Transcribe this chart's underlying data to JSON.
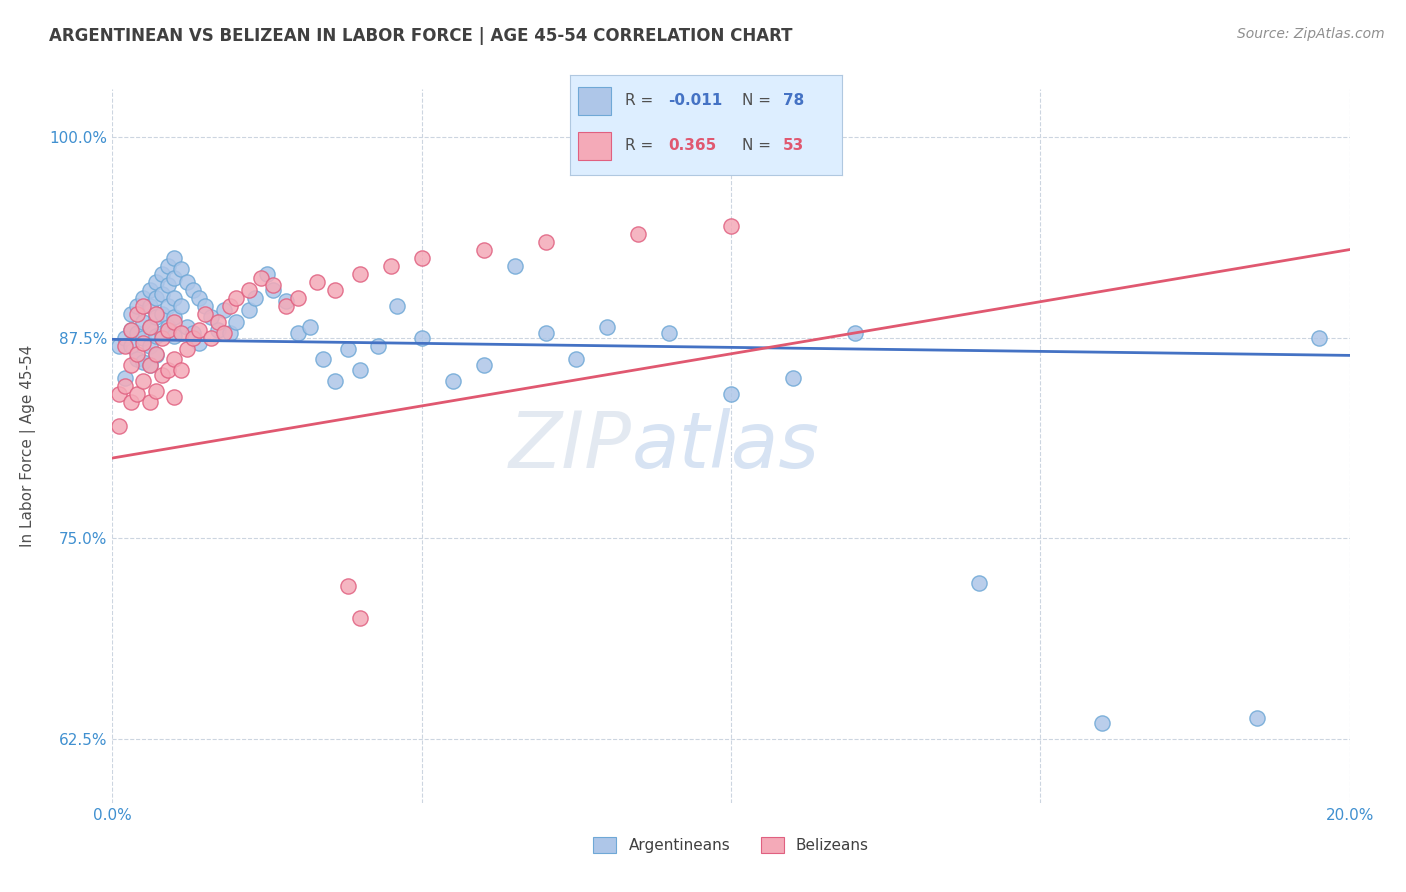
{
  "title": "ARGENTINEAN VS BELIZEAN IN LABOR FORCE | AGE 45-54 CORRELATION CHART",
  "source": "Source: ZipAtlas.com",
  "ylabel_label": "In Labor Force | Age 45-54",
  "xlim": [
    0.0,
    0.2
  ],
  "ylim": [
    0.585,
    1.03
  ],
  "yticks": [
    0.625,
    0.75,
    0.875,
    1.0
  ],
  "argentinean_color": "#aec6e8",
  "argentinean_edge": "#6fa8d6",
  "belizean_color": "#f4aab8",
  "belizean_edge": "#e06080",
  "trend_blue": "#4472c4",
  "trend_pink": "#e05870",
  "background_color": "#ffffff",
  "grid_color": "#ccd5e0",
  "title_color": "#404040",
  "axis_label_color": "#505050",
  "tick_color": "#4090d0",
  "legend_box_color": "#ddeeff",
  "legend_box_edge": "#b0c8e0",
  "watermark_color": "#c5d5ea",
  "argentinean_x": [
    0.001,
    0.002,
    0.002,
    0.003,
    0.003,
    0.003,
    0.004,
    0.004,
    0.004,
    0.005,
    0.005,
    0.005,
    0.005,
    0.006,
    0.006,
    0.006,
    0.006,
    0.006,
    0.007,
    0.007,
    0.007,
    0.007,
    0.007,
    0.008,
    0.008,
    0.008,
    0.008,
    0.009,
    0.009,
    0.009,
    0.009,
    0.01,
    0.01,
    0.01,
    0.01,
    0.01,
    0.011,
    0.011,
    0.012,
    0.012,
    0.013,
    0.013,
    0.014,
    0.014,
    0.015,
    0.016,
    0.017,
    0.018,
    0.019,
    0.02,
    0.022,
    0.023,
    0.025,
    0.026,
    0.028,
    0.03,
    0.032,
    0.034,
    0.036,
    0.038,
    0.04,
    0.043,
    0.046,
    0.05,
    0.055,
    0.06,
    0.065,
    0.07,
    0.075,
    0.08,
    0.09,
    0.1,
    0.11,
    0.12,
    0.14,
    0.16,
    0.185,
    0.195
  ],
  "argentinean_y": [
    0.87,
    0.875,
    0.85,
    0.89,
    0.88,
    0.87,
    0.895,
    0.878,
    0.862,
    0.9,
    0.885,
    0.875,
    0.86,
    0.905,
    0.895,
    0.882,
    0.87,
    0.858,
    0.91,
    0.9,
    0.888,
    0.876,
    0.864,
    0.915,
    0.902,
    0.89,
    0.878,
    0.92,
    0.908,
    0.895,
    0.882,
    0.925,
    0.912,
    0.9,
    0.888,
    0.876,
    0.918,
    0.895,
    0.91,
    0.882,
    0.905,
    0.878,
    0.9,
    0.872,
    0.895,
    0.888,
    0.88,
    0.892,
    0.878,
    0.885,
    0.892,
    0.9,
    0.915,
    0.905,
    0.898,
    0.878,
    0.882,
    0.862,
    0.848,
    0.868,
    0.855,
    0.87,
    0.895,
    0.875,
    0.848,
    0.858,
    0.92,
    0.878,
    0.862,
    0.882,
    0.878,
    0.84,
    0.85,
    0.878,
    0.722,
    0.635,
    0.638,
    0.875
  ],
  "belizean_x": [
    0.001,
    0.001,
    0.002,
    0.002,
    0.003,
    0.003,
    0.003,
    0.004,
    0.004,
    0.004,
    0.005,
    0.005,
    0.005,
    0.006,
    0.006,
    0.006,
    0.007,
    0.007,
    0.007,
    0.008,
    0.008,
    0.009,
    0.009,
    0.01,
    0.01,
    0.01,
    0.011,
    0.011,
    0.012,
    0.013,
    0.014,
    0.015,
    0.016,
    0.017,
    0.018,
    0.019,
    0.02,
    0.022,
    0.024,
    0.026,
    0.028,
    0.03,
    0.033,
    0.036,
    0.04,
    0.045,
    0.05,
    0.06,
    0.07,
    0.085,
    0.1,
    0.04,
    0.038
  ],
  "belizean_y": [
    0.84,
    0.82,
    0.87,
    0.845,
    0.88,
    0.858,
    0.835,
    0.89,
    0.865,
    0.84,
    0.895,
    0.872,
    0.848,
    0.882,
    0.858,
    0.835,
    0.89,
    0.865,
    0.842,
    0.875,
    0.852,
    0.88,
    0.855,
    0.885,
    0.862,
    0.838,
    0.878,
    0.855,
    0.868,
    0.875,
    0.88,
    0.89,
    0.875,
    0.885,
    0.878,
    0.895,
    0.9,
    0.905,
    0.912,
    0.908,
    0.895,
    0.9,
    0.91,
    0.905,
    0.915,
    0.92,
    0.925,
    0.93,
    0.935,
    0.94,
    0.945,
    0.7,
    0.72
  ]
}
